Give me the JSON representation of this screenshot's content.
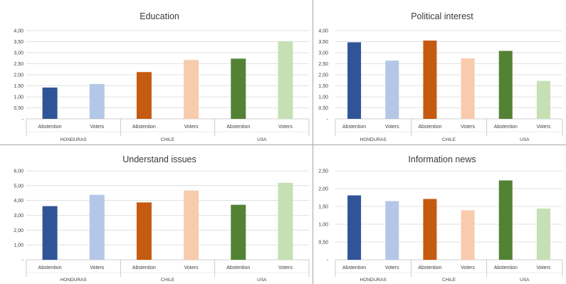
{
  "colors": {
    "HONDURAS": [
      "#2f5597",
      "#b4c7e7"
    ],
    "CHILE": [
      "#c55a11",
      "#f8cbad"
    ],
    "USA": [
      "#548235",
      "#c5e0b4"
    ]
  },
  "chart_data": [
    {
      "type": "bar",
      "title": "Education",
      "groups": [
        "HONDURAS",
        "CHILE",
        "USA"
      ],
      "categories": [
        "Abstention",
        "Voters",
        "Abstention",
        "Voters",
        "Abstention",
        "Voters"
      ],
      "values": [
        1.42,
        1.58,
        2.12,
        2.67,
        2.73,
        3.52
      ],
      "ylim": [
        0,
        4
      ],
      "yticks": [
        "-",
        "0,50",
        "1,00",
        "1,50",
        "2,00",
        "2,50",
        "3,00",
        "3,50",
        "4,00"
      ],
      "grid": true,
      "legend": "none"
    },
    {
      "type": "bar",
      "title": "Political interest",
      "groups": [
        "HONDURAS",
        "CHILE",
        "USA"
      ],
      "categories": [
        "Abstention",
        "Voters",
        "Abstention",
        "Voters",
        "Abstention",
        "Voters"
      ],
      "values": [
        3.47,
        2.64,
        3.55,
        2.74,
        3.08,
        1.72
      ],
      "ylim": [
        0,
        4
      ],
      "yticks": [
        "-",
        "0,50",
        "1,00",
        "1,50",
        "2,00",
        "2,50",
        "3,00",
        "3,50",
        "4,00"
      ],
      "grid": true,
      "legend": "none"
    },
    {
      "type": "bar",
      "title": "Understand issues",
      "groups": [
        "HONDURAS",
        "CHILE",
        "USA"
      ],
      "categories": [
        "Abstention",
        "Voters",
        "Abstention",
        "Voters",
        "Abstention",
        "Voters"
      ],
      "values": [
        3.62,
        4.38,
        3.87,
        4.67,
        3.71,
        5.19
      ],
      "ylim": [
        0,
        6
      ],
      "yticks": [
        "-",
        "1,00",
        "2,00",
        "3,00",
        "4,00",
        "5,00",
        "6,00"
      ],
      "grid": true,
      "legend": "none"
    },
    {
      "type": "bar",
      "title": "Information news",
      "groups": [
        "HONDURAS",
        "CHILE",
        "USA"
      ],
      "categories": [
        "Abstention",
        "Voters",
        "Abstention",
        "Voters",
        "Abstention",
        "Voters"
      ],
      "values": [
        1.81,
        1.65,
        1.71,
        1.39,
        2.23,
        1.44
      ],
      "ylim": [
        0,
        2.5
      ],
      "yticks": [
        "-",
        "0,50",
        "1,00",
        "1,50",
        "2,00",
        "2,50"
      ],
      "grid": true,
      "legend": "none"
    }
  ]
}
